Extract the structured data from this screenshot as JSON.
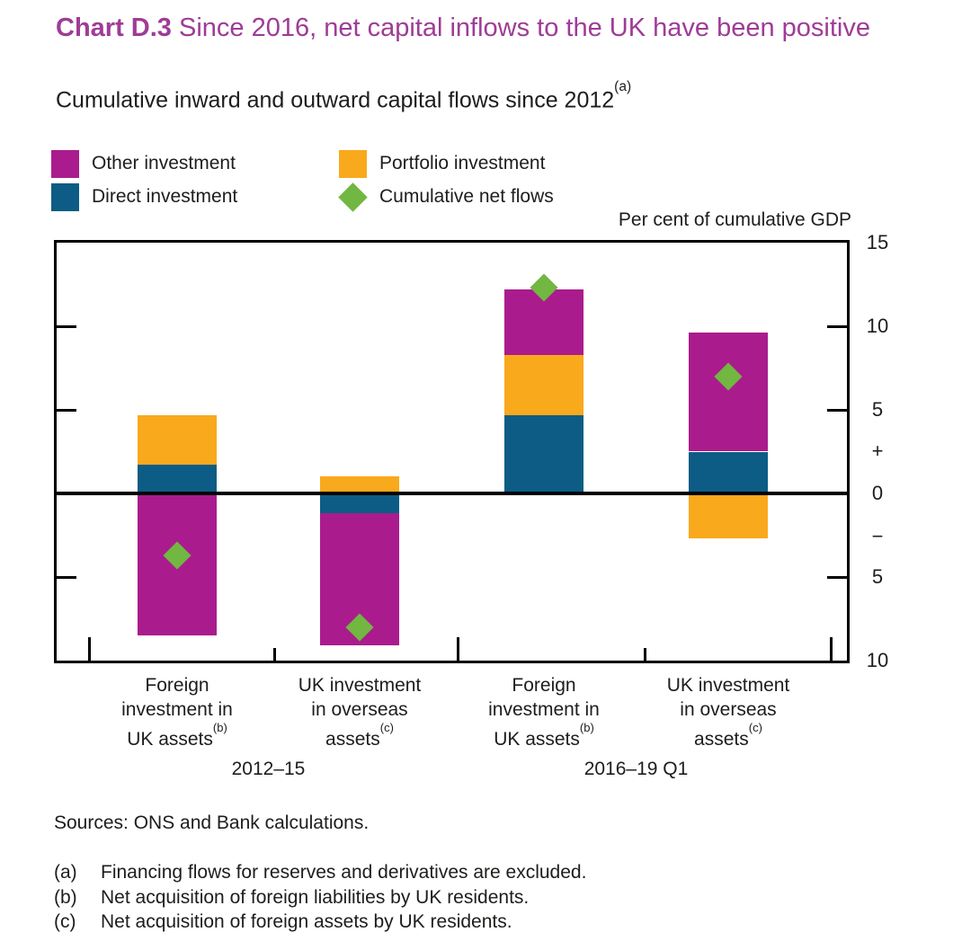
{
  "title": {
    "prefix": "Chart D.3",
    "text": "Since 2016, net capital inflows to the UK have been positive",
    "color": "#9E3C96"
  },
  "subtitle": {
    "text": "Cumulative inward and outward capital flows since 2012",
    "superscript": "(a)"
  },
  "legend": {
    "items": [
      {
        "label": "Other investment",
        "color": "#AA1C8D",
        "marker": "square"
      },
      {
        "label": "Direct investment",
        "color": "#0D5C85",
        "marker": "square"
      },
      {
        "label": "Portfolio investment",
        "color": "#F9A91C",
        "marker": "square"
      },
      {
        "label": "Cumulative net flows",
        "color": "#71B742",
        "marker": "diamond"
      }
    ]
  },
  "chart_data": {
    "type": "bar",
    "stacked": true,
    "title": "Cumulative inward and outward capital flows since 2012",
    "ylabel": "Per cent of cumulative GDP",
    "ylim": [
      -10,
      15
    ],
    "grid": false,
    "zero_line": true,
    "legend_position": "top-left",
    "categories": [
      {
        "lines": [
          "Foreign",
          "investment in",
          "UK assets"
        ],
        "footnote": "(b)",
        "group": "2012–15"
      },
      {
        "lines": [
          "UK investment",
          "in overseas",
          "assets"
        ],
        "footnote": "(c)",
        "group": "2012–15"
      },
      {
        "lines": [
          "Foreign",
          "investment in",
          "UK assets"
        ],
        "footnote": "(b)",
        "group": "2016–19 Q1"
      },
      {
        "lines": [
          "UK investment",
          "in overseas",
          "assets"
        ],
        "footnote": "(c)",
        "group": "2016–19 Q1"
      }
    ],
    "groups": [
      "2012–15",
      "2016–19 Q1"
    ],
    "series": [
      {
        "name": "Direct investment",
        "color": "#0D5C85",
        "values": [
          1.7,
          -1.2,
          4.7,
          2.5
        ]
      },
      {
        "name": "Portfolio investment",
        "color": "#F9A91C",
        "values": [
          3.0,
          1.0,
          3.6,
          -2.7
        ]
      },
      {
        "name": "Other investment",
        "color": "#AA1C8D",
        "values": [
          -8.5,
          -7.9,
          3.9,
          7.1
        ]
      }
    ],
    "markers": {
      "name": "Cumulative net flows",
      "color": "#71B742",
      "shape": "diamond",
      "values": [
        -3.7,
        -8.0,
        12.3,
        7.0
      ]
    },
    "right_axis_labels": [
      {
        "value": 15,
        "label": "15"
      },
      {
        "value": 10,
        "label": "10"
      },
      {
        "value": 5,
        "label": "5"
      },
      {
        "value": 2.55,
        "label": "+"
      },
      {
        "value": 0,
        "label": "0"
      },
      {
        "value": -2.6,
        "label": "−"
      },
      {
        "value": -5,
        "label": "5"
      },
      {
        "value": -10,
        "label": "10"
      }
    ],
    "tick_values": [
      10,
      5,
      0,
      -5
    ]
  },
  "footer": {
    "sources": "Sources: ONS and Bank calculations.",
    "footnotes": [
      {
        "marker": "(a)",
        "text": "Financing flows for reserves and derivatives are excluded."
      },
      {
        "marker": "(b)",
        "text": "Net acquisition of foreign liabilities by UK residents."
      },
      {
        "marker": "(c)",
        "text": "Net acquisition of foreign assets by UK residents."
      }
    ]
  }
}
